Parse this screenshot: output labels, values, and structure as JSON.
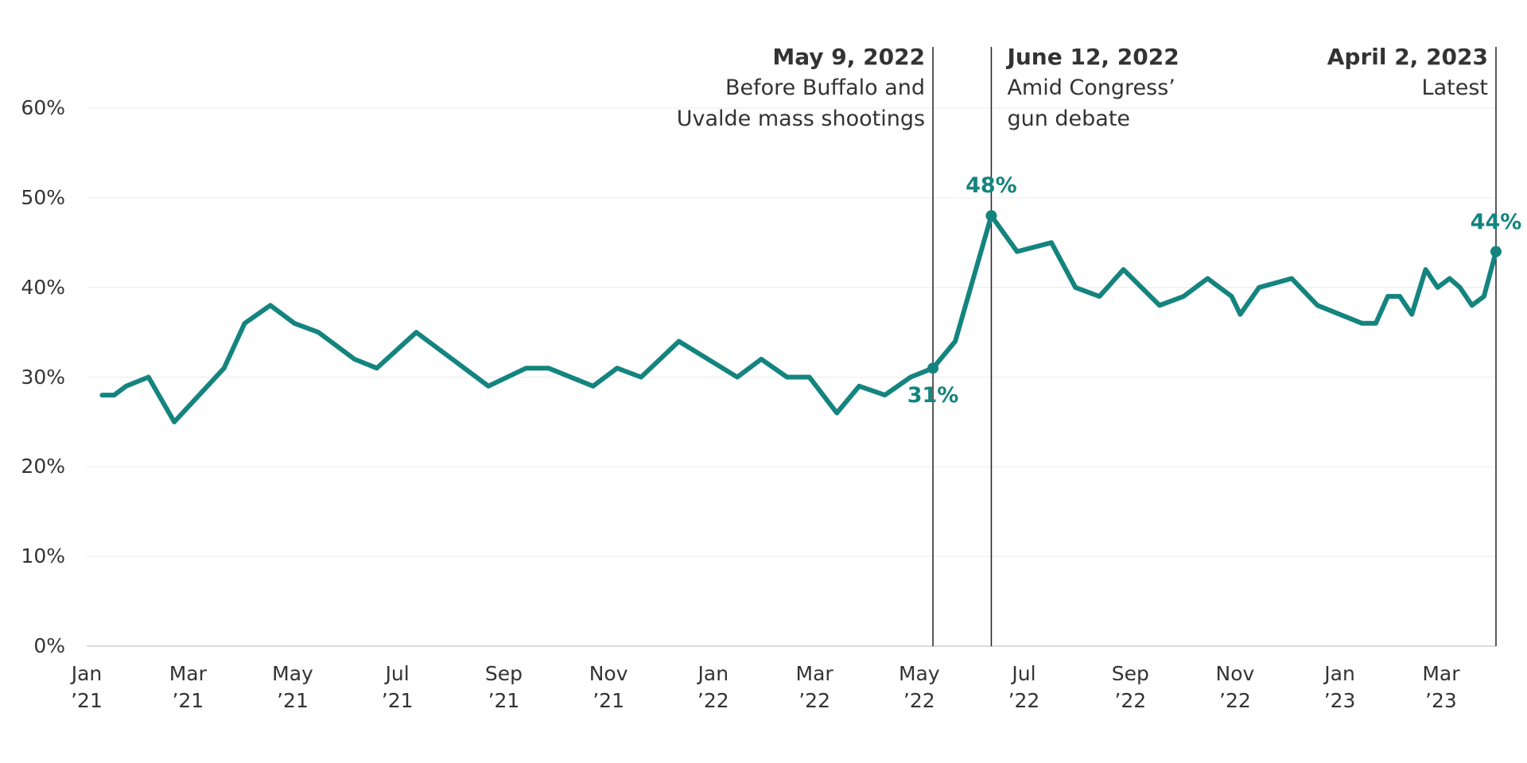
{
  "chart_data": {
    "type": "line",
    "color": "#14847f",
    "grid": true,
    "x": [
      "2021-01-10",
      "2021-01-17",
      "2021-01-24",
      "2021-02-06",
      "2021-02-21",
      "2021-03-22",
      "2021-04-03",
      "2021-04-18",
      "2021-05-02",
      "2021-05-16",
      "2021-06-06",
      "2021-06-19",
      "2021-07-12",
      "2021-08-02",
      "2021-08-23",
      "2021-09-14",
      "2021-09-27",
      "2021-10-23",
      "2021-11-06",
      "2021-11-20",
      "2021-12-12",
      "2022-01-15",
      "2022-01-29",
      "2022-02-13",
      "2022-02-26",
      "2022-03-14",
      "2022-03-27",
      "2022-04-11",
      "2022-04-26",
      "2022-05-09",
      "2022-05-22",
      "2022-06-12",
      "2022-06-27",
      "2022-07-17",
      "2022-07-31",
      "2022-08-14",
      "2022-08-28",
      "2022-09-18",
      "2022-10-02",
      "2022-10-16",
      "2022-10-30",
      "2022-11-04",
      "2022-11-15",
      "2022-12-04",
      "2022-12-19",
      "2023-01-14",
      "2023-01-22",
      "2023-01-29",
      "2023-02-05",
      "2023-02-12",
      "2023-02-20",
      "2023-02-27",
      "2023-03-06",
      "2023-03-12",
      "2023-03-19",
      "2023-03-26",
      "2023-04-02"
    ],
    "values": [
      28,
      28,
      29,
      30,
      25,
      31,
      36,
      38,
      36,
      35,
      32,
      31,
      35,
      32,
      29,
      31,
      31,
      29,
      31,
      30,
      34,
      30,
      32,
      30,
      30,
      26,
      29,
      28,
      30,
      31,
      34,
      48,
      44,
      45,
      40,
      39,
      42,
      38,
      39,
      41,
      39,
      37,
      40,
      41,
      38,
      36,
      36,
      39,
      39,
      37,
      42,
      40,
      41,
      40,
      38,
      39,
      44
    ],
    "value_labels": [
      null,
      null,
      null,
      null,
      null,
      null,
      null,
      null,
      null,
      null,
      null,
      null,
      null,
      null,
      null,
      null,
      null,
      null,
      null,
      null,
      null,
      null,
      null,
      null,
      null,
      null,
      null,
      null,
      null,
      "31%",
      null,
      "48%",
      null,
      null,
      null,
      null,
      null,
      null,
      null,
      null,
      null,
      null,
      null,
      null,
      null,
      null,
      null,
      null,
      null,
      null,
      null,
      null,
      null,
      null,
      null,
      null,
      "44%"
    ],
    "xlim": [
      "2021-01-01",
      "2023-04-02"
    ],
    "xticks": [
      {
        "value": "2021-01-01",
        "label": "Jan\n’21"
      },
      {
        "value": "2021-03-01",
        "label": "Mar\n’21"
      },
      {
        "value": "2021-05-01",
        "label": "May\n’21"
      },
      {
        "value": "2021-07-01",
        "label": "Jul\n’21"
      },
      {
        "value": "2021-09-01",
        "label": "Sep\n’21"
      },
      {
        "value": "2021-11-01",
        "label": "Nov\n’21"
      },
      {
        "value": "2022-01-01",
        "label": "Jan\n’22"
      },
      {
        "value": "2022-03-01",
        "label": "Mar\n’22"
      },
      {
        "value": "2022-05-01",
        "label": "May\n’22"
      },
      {
        "value": "2022-07-01",
        "label": "Jul\n’22"
      },
      {
        "value": "2022-09-01",
        "label": "Sep\n’22"
      },
      {
        "value": "2022-11-01",
        "label": "Nov\n’22"
      },
      {
        "value": "2023-01-01",
        "label": "Jan\n’23"
      },
      {
        "value": "2023-03-01",
        "label": "Mar\n’23"
      }
    ],
    "ylim": [
      0,
      60
    ],
    "yticks": [
      {
        "value": 0,
        "label": "0%"
      },
      {
        "value": 10,
        "label": "10%"
      },
      {
        "value": 20,
        "label": "20%"
      },
      {
        "value": 30,
        "label": "30%"
      },
      {
        "value": 40,
        "label": "40%"
      },
      {
        "value": 50,
        "label": "50%"
      },
      {
        "value": 60,
        "label": "60%"
      }
    ],
    "annotations": [
      {
        "x": "2022-05-09",
        "title": "May 9, 2022",
        "text": "Before Buffalo and\nUvalde mass shootings",
        "side": "left"
      },
      {
        "x": "2022-06-12",
        "title": "June 12, 2022",
        "text": "Amid Congress’\ngun debate",
        "side": "right"
      },
      {
        "x": "2023-04-02",
        "title": "April 2, 2023",
        "text": "Latest",
        "side": "left"
      }
    ]
  }
}
